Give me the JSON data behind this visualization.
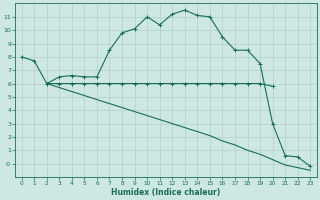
{
  "xlabel": "Humidex (Indice chaleur)",
  "bg_color": "#cce8e0",
  "grid_color": "#b0d0c8",
  "line_color": "#1a6b5a",
  "line1_x": [
    0,
    1,
    2,
    3,
    4,
    5,
    6,
    7,
    8,
    9,
    10,
    11,
    12,
    13,
    14,
    15,
    16,
    17,
    18,
    19,
    20,
    21,
    22,
    23
  ],
  "line1_y": [
    8.0,
    7.7,
    6.0,
    6.5,
    6.6,
    6.5,
    6.5,
    8.5,
    9.8,
    10.1,
    11.0,
    10.4,
    11.2,
    11.5,
    11.1,
    11.0,
    9.5,
    8.5,
    8.5,
    7.5,
    3.0,
    0.6,
    0.5,
    -0.2
  ],
  "line2_x": [
    2,
    3,
    4,
    5,
    6,
    7,
    8,
    9,
    10,
    11,
    12,
    13,
    14,
    15,
    16,
    17,
    18,
    19,
    20
  ],
  "line2_y": [
    6.0,
    6.0,
    6.0,
    6.0,
    6.0,
    6.0,
    6.0,
    6.0,
    6.0,
    6.0,
    6.0,
    6.0,
    6.0,
    6.0,
    6.0,
    6.0,
    6.0,
    6.0,
    5.8
  ],
  "line3_x": [
    2,
    3,
    4,
    5,
    6,
    7,
    8,
    9,
    10,
    11,
    12,
    13,
    14,
    15,
    16,
    17,
    18,
    19,
    20,
    21,
    22,
    23
  ],
  "line3_y": [
    6.0,
    5.7,
    5.4,
    5.1,
    4.8,
    4.5,
    4.2,
    3.9,
    3.6,
    3.3,
    3.0,
    2.7,
    2.4,
    2.1,
    1.7,
    1.4,
    1.0,
    0.7,
    0.3,
    -0.1,
    -0.3,
    -0.5
  ],
  "ylim": [
    -1,
    12
  ],
  "xlim": [
    -0.5,
    23.5
  ],
  "yticks": [
    0,
    1,
    2,
    3,
    4,
    5,
    6,
    7,
    8,
    9,
    10,
    11
  ],
  "xticks": [
    0,
    1,
    2,
    3,
    4,
    5,
    6,
    7,
    8,
    9,
    10,
    11,
    12,
    13,
    14,
    15,
    16,
    17,
    18,
    19,
    20,
    21,
    22,
    23
  ]
}
